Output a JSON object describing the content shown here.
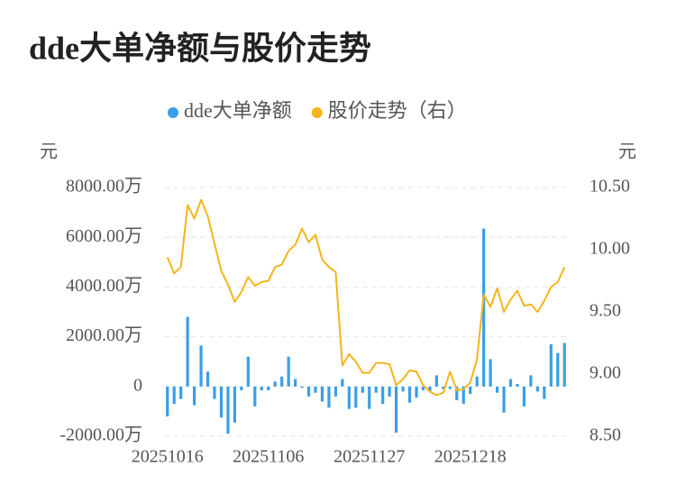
{
  "chart_data": {
    "type": "bar-line",
    "title": "dde大单净额与股价走势",
    "y_label": "元",
    "y2_label": "元",
    "categories": [
      "20251016",
      null,
      null,
      null,
      null,
      null,
      null,
      null,
      null,
      null,
      null,
      null,
      null,
      null,
      null,
      "20251106",
      null,
      null,
      null,
      null,
      null,
      null,
      null,
      null,
      null,
      null,
      null,
      null,
      null,
      null,
      "20251127",
      null,
      null,
      null,
      null,
      null,
      null,
      null,
      null,
      null,
      null,
      null,
      null,
      null,
      null,
      "20251218",
      null,
      null,
      null,
      null,
      null,
      null,
      null,
      null,
      null,
      null,
      null,
      null,
      null,
      null
    ],
    "series": [
      {
        "name": "dde大单净额",
        "type": "bar",
        "color": "#3a9ee8",
        "values": [
          -1200,
          -700,
          -500,
          2800,
          -750,
          1650,
          600,
          -500,
          -1250,
          -1900,
          -1450,
          -150,
          1200,
          -800,
          -150,
          -150,
          200,
          400,
          1200,
          300,
          -50,
          -400,
          -250,
          -600,
          -850,
          -400,
          300,
          -900,
          -850,
          -250,
          -900,
          -250,
          -700,
          -400,
          -1850,
          -200,
          -650,
          -450,
          -150,
          -200,
          450,
          -100,
          -100,
          -550,
          -700,
          -300,
          400,
          6350,
          1100,
          -250,
          -1050,
          300,
          100,
          -800,
          450,
          -200,
          -500,
          1700,
          1350,
          1750
        ]
      },
      {
        "name": "股价走势（右）",
        "type": "line",
        "axis": "y2",
        "color": "#f5b51c",
        "values": [
          9.94,
          9.81,
          9.86,
          10.36,
          10.25,
          10.4,
          10.27,
          10.05,
          9.83,
          9.72,
          9.58,
          9.66,
          9.78,
          9.71,
          9.74,
          9.75,
          9.86,
          9.88,
          9.99,
          10.04,
          10.17,
          10.06,
          10.12,
          9.92,
          9.86,
          9.82,
          9.07,
          9.16,
          9.1,
          9.01,
          9.01,
          9.09,
          9.09,
          9.08,
          8.91,
          8.96,
          9.03,
          9.02,
          8.91,
          8.86,
          8.83,
          8.85,
          9.02,
          8.87,
          8.88,
          8.93,
          9.12,
          9.64,
          9.54,
          9.69,
          9.5,
          9.6,
          9.67,
          9.55,
          9.56,
          9.5,
          9.59,
          9.7,
          9.74,
          9.86
        ]
      }
    ],
    "ylim": [
      -2000,
      8000
    ],
    "yticks": [
      {
        "value": -2000,
        "label": "-2000.00万"
      },
      0,
      {
        "value": 2000,
        "label": "2000.00万"
      },
      {
        "value": 4000,
        "label": "4000.00万"
      },
      {
        "value": 6000,
        "label": "6000.00万"
      },
      {
        "value": 8000,
        "label": "8000.00万"
      }
    ],
    "y2lim": [
      8.5,
      10.5
    ],
    "y2ticks": [
      {
        "value": 8.5,
        "label": "8.50"
      },
      {
        "value": 9,
        "label": "9.00"
      },
      {
        "value": 9.5,
        "label": "9.50"
      },
      {
        "value": 10,
        "label": "10.00"
      },
      {
        "value": 10.5,
        "label": "10.50"
      }
    ],
    "grid": true,
    "legend": "top"
  }
}
